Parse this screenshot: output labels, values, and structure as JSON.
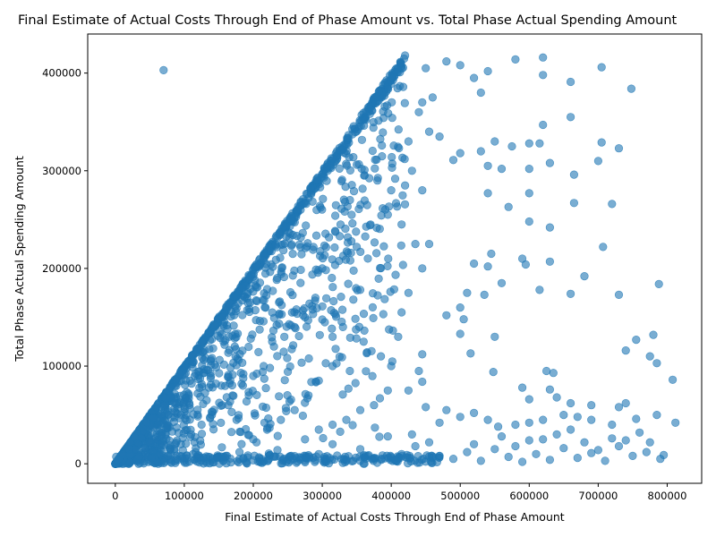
{
  "chart_data": {
    "type": "scatter",
    "title": "Final Estimate of Actual Costs Through End of Phase Amount vs. Total Phase Actual Spending Amount",
    "xlabel": "Final Estimate of Actual Costs Through End of Phase Amount",
    "ylabel": "Total Phase Actual Spending Amount",
    "xlim": [
      -40000,
      850000
    ],
    "ylim": [
      -20000,
      440000
    ],
    "x_ticks": [
      0,
      100000,
      200000,
      300000,
      400000,
      500000,
      600000,
      700000,
      800000
    ],
    "x_tick_labels": [
      "0",
      "100000",
      "200000",
      "300000",
      "400000",
      "500000",
      "600000",
      "700000",
      "800000"
    ],
    "y_ticks": [
      0,
      100000,
      200000,
      300000,
      400000
    ],
    "y_tick_labels": [
      "0",
      "100000",
      "200000",
      "300000",
      "400000"
    ],
    "grid": false,
    "color": "#1f77b4",
    "alpha": 0.6,
    "points": [
      [
        70000,
        403000
      ],
      [
        420000,
        418000
      ],
      [
        450000,
        405000
      ],
      [
        480000,
        412000
      ],
      [
        500000,
        408000
      ],
      [
        520000,
        395000
      ],
      [
        530000,
        380000
      ],
      [
        540000,
        402000
      ],
      [
        580000,
        414000
      ],
      [
        620000,
        416000
      ],
      [
        620000,
        398000
      ],
      [
        660000,
        391000
      ],
      [
        705000,
        406000
      ],
      [
        748000,
        384000
      ],
      [
        660000,
        355000
      ],
      [
        620000,
        347000
      ],
      [
        705000,
        329000
      ],
      [
        730000,
        323000
      ],
      [
        600000,
        328000
      ],
      [
        615000,
        328000
      ],
      [
        575000,
        325000
      ],
      [
        550000,
        330000
      ],
      [
        530000,
        320000
      ],
      [
        500000,
        318000
      ],
      [
        490000,
        311000
      ],
      [
        540000,
        305000
      ],
      [
        560000,
        302000
      ],
      [
        600000,
        302000
      ],
      [
        630000,
        308000
      ],
      [
        665000,
        296000
      ],
      [
        700000,
        310000
      ],
      [
        540000,
        277000
      ],
      [
        600000,
        277000
      ],
      [
        570000,
        263000
      ],
      [
        665000,
        267000
      ],
      [
        720000,
        266000
      ],
      [
        600000,
        248000
      ],
      [
        630000,
        242000
      ],
      [
        590000,
        210000
      ],
      [
        595000,
        204000
      ],
      [
        630000,
        207000
      ],
      [
        680000,
        192000
      ],
      [
        520000,
        205000
      ],
      [
        540000,
        202000
      ],
      [
        560000,
        185000
      ],
      [
        615000,
        178000
      ],
      [
        660000,
        174000
      ],
      [
        730000,
        173000
      ],
      [
        788000,
        184000
      ],
      [
        707000,
        222000
      ],
      [
        545000,
        215000
      ],
      [
        510000,
        175000
      ],
      [
        535000,
        173000
      ],
      [
        480000,
        152000
      ],
      [
        505000,
        148000
      ],
      [
        500000,
        160000
      ],
      [
        500000,
        133000
      ],
      [
        550000,
        130000
      ],
      [
        515000,
        113000
      ],
      [
        740000,
        116000
      ],
      [
        755000,
        127000
      ],
      [
        775000,
        110000
      ],
      [
        780000,
        132000
      ],
      [
        785000,
        103000
      ],
      [
        808000,
        86000
      ],
      [
        548000,
        94000
      ],
      [
        625000,
        95000
      ],
      [
        635000,
        93000
      ],
      [
        590000,
        78000
      ],
      [
        630000,
        76000
      ],
      [
        640000,
        68000
      ],
      [
        600000,
        66000
      ],
      [
        660000,
        62000
      ],
      [
        690000,
        60000
      ],
      [
        740000,
        62000
      ],
      [
        730000,
        58000
      ],
      [
        785000,
        50000
      ],
      [
        812000,
        42000
      ],
      [
        755000,
        46000
      ],
      [
        720000,
        40000
      ],
      [
        690000,
        45000
      ],
      [
        670000,
        48000
      ],
      [
        650000,
        50000
      ],
      [
        620000,
        45000
      ],
      [
        600000,
        42000
      ],
      [
        580000,
        40000
      ],
      [
        555000,
        38000
      ],
      [
        540000,
        45000
      ],
      [
        520000,
        52000
      ],
      [
        500000,
        48000
      ],
      [
        480000,
        55000
      ],
      [
        470000,
        42000
      ],
      [
        450000,
        58000
      ],
      [
        470000,
        8000
      ],
      [
        490000,
        5000
      ],
      [
        510000,
        12000
      ],
      [
        530000,
        3000
      ],
      [
        550000,
        15000
      ],
      [
        570000,
        7000
      ],
      [
        590000,
        2000
      ],
      [
        610000,
        10000
      ],
      [
        630000,
        4000
      ],
      [
        650000,
        16000
      ],
      [
        670000,
        6000
      ],
      [
        690000,
        11000
      ],
      [
        710000,
        3000
      ],
      [
        730000,
        18000
      ],
      [
        750000,
        8000
      ],
      [
        770000,
        12000
      ],
      [
        790000,
        5000
      ],
      [
        560000,
        28000
      ],
      [
        600000,
        24000
      ],
      [
        640000,
        30000
      ],
      [
        680000,
        22000
      ],
      [
        720000,
        26000
      ],
      [
        760000,
        32000
      ],
      [
        520000,
        20000
      ],
      [
        580000,
        18000
      ],
      [
        620000,
        25000
      ],
      [
        660000,
        35000
      ],
      [
        700000,
        14000
      ],
      [
        740000,
        24000
      ],
      [
        775000,
        22000
      ],
      [
        795000,
        9000
      ],
      [
        455000,
        22000
      ],
      [
        435000,
        18000
      ],
      [
        415000,
        10000
      ],
      [
        395000,
        28000
      ],
      [
        375000,
        6000
      ],
      [
        355000,
        15000
      ],
      [
        335000,
        4000
      ],
      [
        315000,
        20000
      ],
      [
        295000,
        10000
      ],
      [
        275000,
        3000
      ],
      [
        255000,
        8000
      ],
      [
        235000,
        14000
      ],
      [
        215000,
        2000
      ],
      [
        445000,
        370000
      ],
      [
        460000,
        375000
      ],
      [
        440000,
        360000
      ],
      [
        425000,
        330000
      ],
      [
        455000,
        340000
      ],
      [
        470000,
        335000
      ],
      [
        430000,
        300000
      ],
      [
        445000,
        280000
      ],
      [
        420000,
        285000
      ],
      [
        400000,
        280000
      ],
      [
        380000,
        290000
      ],
      [
        395000,
        255000
      ],
      [
        370000,
        245000
      ],
      [
        415000,
        245000
      ],
      [
        435000,
        225000
      ],
      [
        455000,
        225000
      ],
      [
        445000,
        200000
      ],
      [
        425000,
        175000
      ],
      [
        415000,
        155000
      ],
      [
        410000,
        130000
      ],
      [
        445000,
        112000
      ],
      [
        440000,
        95000
      ],
      [
        425000,
        75000
      ],
      [
        395000,
        75000
      ],
      [
        375000,
        60000
      ],
      [
        355000,
        55000
      ],
      [
        335000,
        45000
      ],
      [
        315000,
        40000
      ],
      [
        295000,
        35000
      ],
      [
        275000,
        25000
      ],
      [
        430000,
        30000
      ],
      [
        445000,
        84000
      ],
      [
        400000,
        100000
      ],
      [
        385000,
        110000
      ],
      [
        360000,
        125000
      ],
      [
        340000,
        95000
      ],
      [
        315000,
        100000
      ],
      [
        295000,
        85000
      ],
      [
        280000,
        70000
      ],
      [
        260000,
        55000
      ],
      [
        240000,
        45000
      ],
      [
        220000,
        35000
      ],
      [
        200000,
        25000
      ],
      [
        180000,
        12000
      ],
      [
        160000,
        8000
      ],
      [
        350000,
        222000
      ],
      [
        355000,
        178000
      ],
      [
        345000,
        168000
      ],
      [
        330000,
        140000
      ],
      [
        315000,
        130000
      ],
      [
        300000,
        200000
      ],
      [
        290000,
        170000
      ],
      [
        275000,
        150000
      ],
      [
        260000,
        140000
      ],
      [
        245000,
        130000
      ],
      [
        230000,
        120000
      ],
      [
        215000,
        100000
      ],
      [
        200000,
        90000
      ],
      [
        185000,
        80000
      ],
      [
        170000,
        70000
      ],
      [
        155000,
        60000
      ],
      [
        140000,
        50000
      ],
      [
        125000,
        40000
      ],
      [
        110000,
        30000
      ],
      [
        95000,
        20000
      ],
      [
        80000,
        15000
      ],
      [
        65000,
        10000
      ]
    ],
    "diagonal_band": {
      "x_max": 420000,
      "slope": 1.0
    }
  }
}
